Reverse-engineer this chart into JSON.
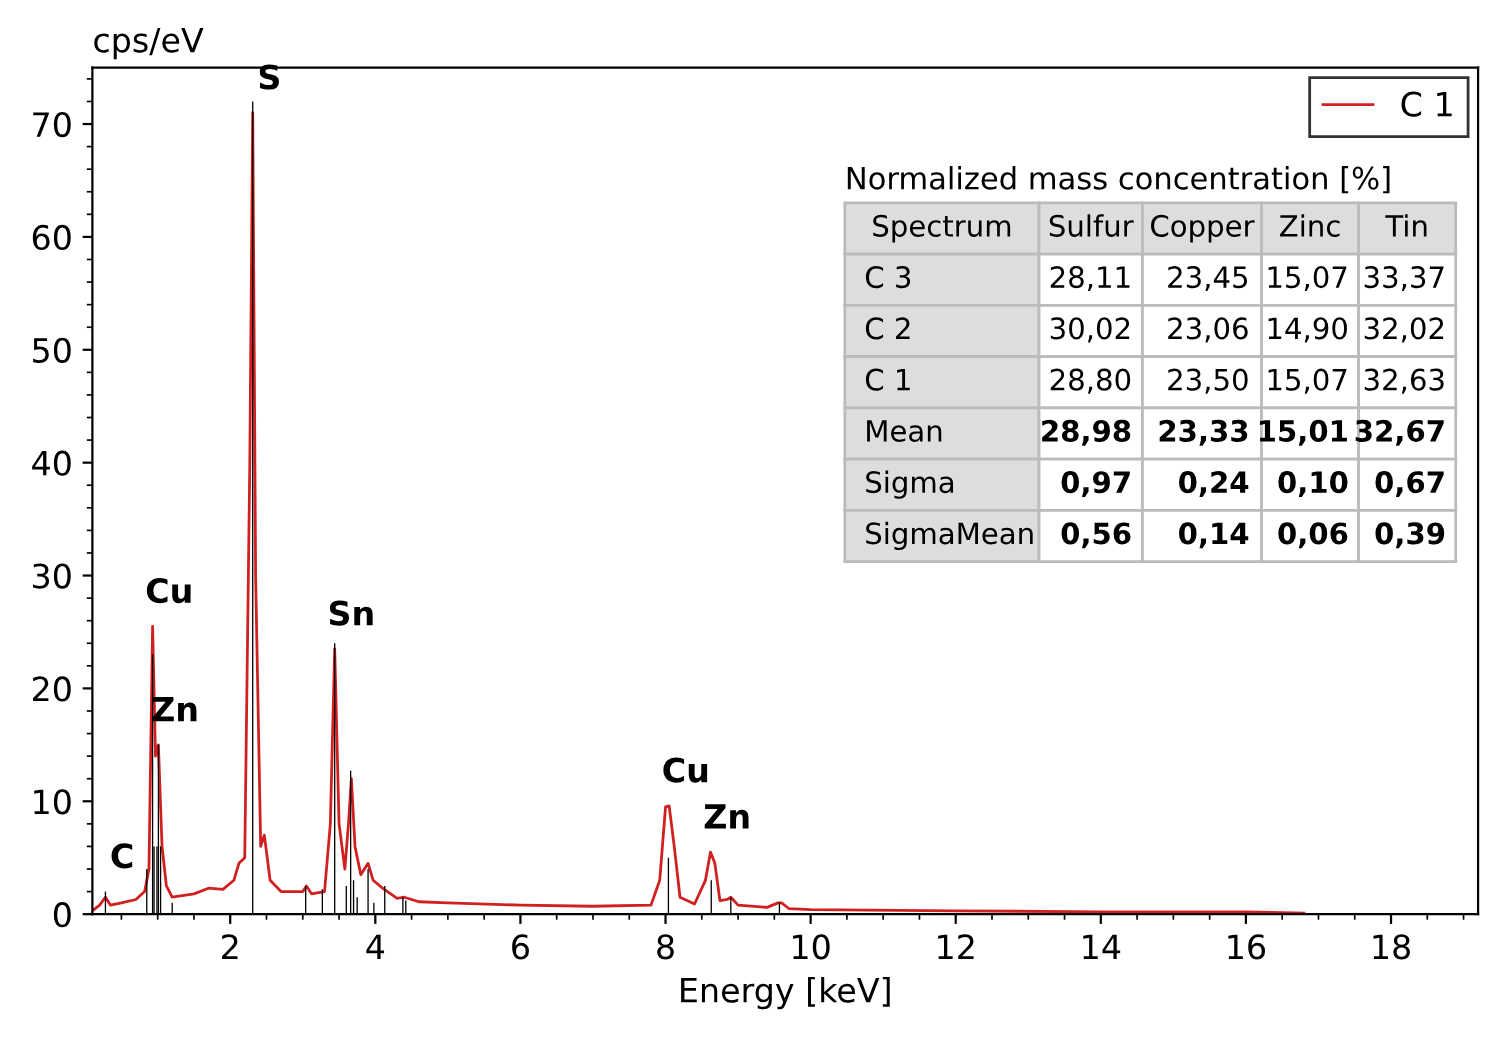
{
  "chart_data": [
    {
      "type": "line",
      "xlabel": "Energy [keV]",
      "ylabel": "cps/eV",
      "xlim": [
        0.1,
        19.2
      ],
      "ylim": [
        0,
        75
      ],
      "xticks": [
        2,
        4,
        6,
        8,
        10,
        12,
        14,
        16,
        18
      ],
      "yticks": [
        0,
        10,
        20,
        30,
        40,
        50,
        60,
        70
      ],
      "grid": false,
      "legend": "top right",
      "marker": "none",
      "line_style": "solid",
      "series": [
        {
          "name": "C 1",
          "color": "#d02020",
          "x": [
            0.1,
            0.2,
            0.28,
            0.35,
            0.5,
            0.7,
            0.82,
            0.88,
            0.93,
            0.97,
            1.01,
            1.06,
            1.12,
            1.2,
            1.5,
            1.7,
            1.9,
            2.05,
            2.12,
            2.2,
            2.27,
            2.31,
            2.35,
            2.42,
            2.47,
            2.55,
            2.7,
            3.0,
            3.05,
            3.12,
            3.3,
            3.38,
            3.44,
            3.5,
            3.58,
            3.63,
            3.67,
            3.72,
            3.8,
            3.9,
            3.97,
            4.1,
            4.3,
            4.4,
            4.6,
            5,
            6,
            7,
            7.8,
            7.92,
            8.0,
            8.05,
            8.12,
            8.2,
            8.4,
            8.55,
            8.62,
            8.68,
            8.75,
            8.85,
            8.9,
            9.0,
            9.4,
            9.55,
            9.6,
            9.7,
            10,
            12,
            14,
            16,
            16.8
          ],
          "values": [
            0.3,
            0.8,
            1.5,
            0.8,
            1,
            1.3,
            2,
            4,
            25.5,
            14,
            15,
            6,
            2.5,
            1.5,
            1.8,
            2.3,
            2.2,
            3,
            4.5,
            5,
            40,
            71,
            30,
            6,
            7,
            3,
            2,
            2,
            2.5,
            1.8,
            2,
            8,
            23.5,
            8,
            4,
            8,
            12,
            6,
            3.5,
            4.5,
            3,
            2.3,
            1.4,
            1.5,
            1.1,
            1,
            0.8,
            0.7,
            0.8,
            3,
            9.5,
            9.6,
            6,
            1.5,
            0.9,
            3,
            5.5,
            4.5,
            1.2,
            1.3,
            1.5,
            0.8,
            0.6,
            1.0,
            1.0,
            0.5,
            0.4,
            0.3,
            0.2,
            0.2,
            0.1
          ]
        },
        {
          "type": "bar",
          "color": "#000000",
          "x": [
            0.28,
            0.85,
            0.93,
            0.95,
            0.99,
            1.01,
            1.04,
            1.2,
            2.31,
            3.04,
            3.27,
            3.44,
            3.6,
            3.66,
            3.7,
            3.75,
            3.9,
            3.98,
            4.13,
            4.38,
            4.42,
            8.04,
            8.63,
            8.9,
            9.57
          ],
          "values": [
            2,
            4,
            23,
            6,
            6,
            15,
            6,
            1,
            72,
            2.5,
            2.2,
            24,
            2.5,
            12.7,
            3,
            1.5,
            4,
            1,
            2.5,
            1.5,
            1.2,
            5,
            3,
            1.5,
            1
          ]
        }
      ],
      "annotations": [
        {
          "text": "C",
          "x": 0.28,
          "y": 2
        },
        {
          "text": "Cu",
          "x": 0.93,
          "y": 25.5
        },
        {
          "text": "Zn",
          "x": 1.01,
          "y": 15
        },
        {
          "text": "S",
          "x": 2.31,
          "y": 71
        },
        {
          "text": "Sn",
          "x": 3.44,
          "y": 23.5
        },
        {
          "text": "Cu",
          "x": 8.05,
          "y": 9.6
        },
        {
          "text": "Zn",
          "x": 8.62,
          "y": 5.5
        }
      ]
    },
    {
      "type": "other",
      "title": "Normalized mass concentration [%]",
      "categories": [
        "Spectrum",
        "Sulfur",
        "Copper",
        "Zinc",
        "Tin"
      ],
      "cell_labels": [
        [
          "C 3",
          "28,11",
          "23,45",
          "15,07",
          "33,37"
        ],
        [
          "C 2",
          "30,02",
          "23,06",
          "14,90",
          "32,02"
        ],
        [
          "C 1",
          "28,80",
          "23,50",
          "15,07",
          "32,63"
        ],
        [
          "Mean",
          "28,98",
          "23,33",
          "15,01",
          "32,67"
        ],
        [
          "Sigma",
          "0,97",
          "0,24",
          "0,10",
          "0,67"
        ],
        [
          "SigmaMean",
          "0,56",
          "0,14",
          "0,06",
          "0,39"
        ]
      ]
    }
  ]
}
